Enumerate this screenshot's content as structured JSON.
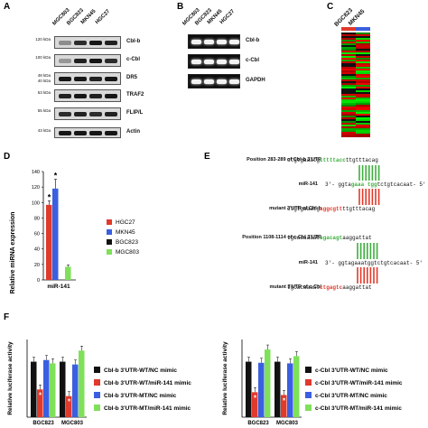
{
  "panel_A": {
    "label": "A",
    "lanes": [
      "MGC803",
      "BGC823",
      "MKN45",
      "HGC27"
    ],
    "blots": [
      {
        "protein": "Cbl-b",
        "kda": [
          "120 kDa"
        ]
      },
      {
        "protein": "c-Cbl",
        "kda": [
          "100 kDa"
        ]
      },
      {
        "protein": "DR5",
        "kda": [
          "48 kDa",
          "40 kDa"
        ]
      },
      {
        "protein": "TRAF2",
        "kda": [
          "53 kDa"
        ]
      },
      {
        "protein": "FLIP/L",
        "kda": [
          "55 kDa"
        ]
      },
      {
        "protein": "Actin",
        "kda": [
          "43 kDa"
        ]
      }
    ]
  },
  "panel_B": {
    "label": "B",
    "lanes": [
      "MGC803",
      "BGC823",
      "MKN45",
      "HGC27"
    ],
    "bands": [
      "Cbl-b",
      "c-Cbl",
      "GAPDH"
    ]
  },
  "panel_C": {
    "label": "C",
    "lanes": [
      "BGC823",
      "MKN45"
    ]
  },
  "panel_D": {
    "label": "D",
    "chart_data": {
      "type": "bar",
      "categories": [
        "miR-141"
      ],
      "series": [
        {
          "name": "HGC27",
          "values": [
            97
          ],
          "error": [
            5
          ],
          "color": "#e03a2c",
          "significant": true
        },
        {
          "name": "MKN45",
          "values": [
            118
          ],
          "error": [
            12
          ],
          "color": "#3a5fe0",
          "significant": true
        },
        {
          "name": "BGC823",
          "values": [
            0
          ],
          "error": [
            0
          ],
          "color": "#111111",
          "significant": false
        },
        {
          "name": "MGC803",
          "values": [
            17
          ],
          "error": [
            2
          ],
          "color": "#7fe05a",
          "significant": false
        }
      ],
      "ylabel": "Relative miRNA expression",
      "yticks": [
        "0",
        "20",
        "40",
        "60",
        "80",
        "100",
        "120",
        "140"
      ],
      "ylim": [
        0,
        140
      ],
      "legend": "right",
      "annotation": "*"
    }
  },
  "panel_E": {
    "label": "E",
    "rows": [
      {
        "label": "Position 283-289 of Cbl-b 3'UTR",
        "pre": "ctgtgaaatg",
        "site": "cttttacc",
        "post": "ttgtttacag",
        "site_color": "#3fae3f"
      },
      {
        "label": "miR-141",
        "pre": "3'- ggta",
        "site": "gaaa tgg",
        "post": "tctgtcacaat- 5'",
        "site_color": "#3fae3f"
      },
      {
        "label": "mutant 3'UTR of Cbl-b",
        "pre": "ctgtgaaatg",
        "site": "aggcgtt",
        "post": "ttgtttacag",
        "site_color": "#e03a2c"
      },
      {
        "label": "Position 1108-1114 of c-Cbl 3'UTR",
        "pre": "tgcacaaaat",
        "site": "agacagt",
        "post": "aaggattat",
        "site_color": "#3fae3f"
      },
      {
        "label": "miR-141",
        "pre": "3'- ggtagaaatgg",
        "site": "",
        "post": "tctgtcacaat- 5'",
        "site_color": "#3fae3f"
      },
      {
        "label": "mutant 3'UTR of c-Cbl",
        "pre": "tgcacaaaat",
        "site": "ctgagtc",
        "post": "aaggattat",
        "site_color": "#e03a2c"
      }
    ]
  },
  "panel_F": {
    "label": "F",
    "chart_data": [
      {
        "type": "bar",
        "categories": [
          "BGC823",
          "MGC803"
        ],
        "series": [
          {
            "name": "Cbl-b 3'UTR-WT/NC mimic",
            "values": [
              1.0,
              1.0
            ],
            "color": "#111111"
          },
          {
            "name": "Cbl-b 3'UTR-WT/miR-141 mimic",
            "values": [
              0.5,
              0.38
            ],
            "color": "#e03a2c"
          },
          {
            "name": "Cbl-b 3'UTR-MT/NC mimic",
            "values": [
              1.03,
              0.95
            ],
            "color": "#3a5fe0"
          },
          {
            "name": "Cbl-b 3'UTR-MT/miR-141 mimic",
            "values": [
              0.97,
              1.2
            ],
            "color": "#7fe05a"
          }
        ],
        "ylabel": "Relative luciferase activity",
        "ylim": [
          0,
          1.4
        ],
        "annotation": "*"
      },
      {
        "type": "bar",
        "categories": [
          "BGC823",
          "MGC803"
        ],
        "series": [
          {
            "name": "c-Cbl 3'UTR-WT/NC mimic",
            "values": [
              1.0,
              1.0
            ],
            "color": "#111111"
          },
          {
            "name": "c-Cbl 3'UTR-WT/miR-141 mimic",
            "values": [
              0.45,
              0.4
            ],
            "color": "#e03a2c"
          },
          {
            "name": "c-Cbl 3'UTR-MT/NC mimic",
            "values": [
              0.98,
              0.97
            ],
            "color": "#3a5fe0"
          },
          {
            "name": "c-Cbl 3'UTR-MT/miR-141 mimic",
            "values": [
              1.22,
              1.1
            ],
            "color": "#7fe05a"
          }
        ],
        "ylabel": "Relative luciferase activity",
        "ylim": [
          0,
          1.4
        ],
        "annotation": "*"
      }
    ]
  }
}
